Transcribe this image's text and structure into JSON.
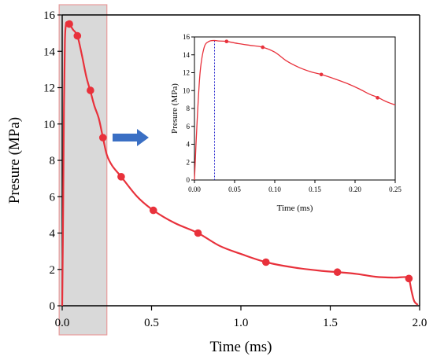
{
  "colors": {
    "curve": "#e8313b",
    "marker": "#e8313b",
    "highlight_fill": "#d9d9d9",
    "highlight_stroke": "#e89a9a",
    "arrow": "#3a6fc4",
    "vline": "#2222cc"
  },
  "chart_data": [
    {
      "type": "line",
      "xlabel": "Time (ms)",
      "ylabel": "Presure (MPa)",
      "xlim": [
        0,
        2.0
      ],
      "ylim": [
        0,
        16
      ],
      "xticks": [
        "0.0",
        "0.5",
        "1.0",
        "1.5",
        "2.0"
      ],
      "yticks": [
        "0",
        "2",
        "4",
        "6",
        "8",
        "10",
        "12",
        "14",
        "16"
      ],
      "highlight_region": {
        "x": [
          -0.017,
          0.25
        ]
      },
      "series": [
        {
          "curve": [
            [
              0.0,
              0.0
            ],
            [
              0.005,
              5.0
            ],
            [
              0.01,
              11.0
            ],
            [
              0.015,
              14.5
            ],
            [
              0.02,
              15.4
            ],
            [
              0.025,
              15.6
            ],
            [
              0.04,
              15.5
            ],
            [
              0.06,
              15.2
            ],
            [
              0.085,
              14.85
            ],
            [
              0.11,
              13.8
            ],
            [
              0.135,
              12.6
            ],
            [
              0.158,
              11.8
            ],
            [
              0.18,
              11.0
            ],
            [
              0.205,
              10.3
            ],
            [
              0.228,
              9.25
            ],
            [
              0.25,
              8.3
            ],
            [
              0.28,
              7.7
            ],
            [
              0.33,
              7.1
            ],
            [
              0.42,
              6.0
            ],
            [
              0.51,
              5.25
            ],
            [
              0.63,
              4.55
            ],
            [
              0.76,
              4.0
            ],
            [
              0.88,
              3.3
            ],
            [
              1.0,
              2.85
            ],
            [
              1.14,
              2.4
            ],
            [
              1.3,
              2.1
            ],
            [
              1.45,
              1.92
            ],
            [
              1.54,
              1.85
            ],
            [
              1.65,
              1.75
            ],
            [
              1.75,
              1.6
            ],
            [
              1.85,
              1.55
            ],
            [
              1.92,
              1.58
            ],
            [
              1.94,
              1.5
            ],
            [
              1.955,
              0.8
            ],
            [
              1.97,
              0.25
            ],
            [
              1.99,
              0.05
            ]
          ],
          "markers": [
            [
              0.04,
              15.5
            ],
            [
              0.085,
              14.85
            ],
            [
              0.158,
              11.85
            ],
            [
              0.228,
              9.25
            ],
            [
              0.33,
              7.1
            ],
            [
              0.51,
              5.25
            ],
            [
              0.76,
              4.0
            ],
            [
              1.14,
              2.4
            ],
            [
              1.54,
              1.85
            ],
            [
              1.94,
              1.5
            ]
          ]
        }
      ]
    },
    {
      "type": "line",
      "xlabel": "Time (ms)",
      "ylabel": "Presure (MPa)",
      "xlim": [
        0,
        0.25
      ],
      "ylim": [
        0,
        16
      ],
      "xticks": [
        "0.00",
        "0.05",
        "0.10",
        "0.15",
        "0.20",
        "0.25"
      ],
      "yticks": [
        "0",
        "2",
        "4",
        "6",
        "8",
        "10",
        "12",
        "14",
        "16"
      ],
      "vline_x": 0.025,
      "series": [
        {
          "curve": [
            [
              0.0,
              0.0
            ],
            [
              0.003,
              6.0
            ],
            [
              0.007,
              12.0
            ],
            [
              0.012,
              14.8
            ],
            [
              0.018,
              15.5
            ],
            [
              0.025,
              15.6
            ],
            [
              0.03,
              15.55
            ],
            [
              0.04,
              15.5
            ],
            [
              0.055,
              15.25
            ],
            [
              0.07,
              15.05
            ],
            [
              0.085,
              14.85
            ],
            [
              0.1,
              14.3
            ],
            [
              0.115,
              13.3
            ],
            [
              0.13,
              12.6
            ],
            [
              0.145,
              12.1
            ],
            [
              0.158,
              11.8
            ],
            [
              0.175,
              11.3
            ],
            [
              0.19,
              10.8
            ],
            [
              0.205,
              10.2
            ],
            [
              0.218,
              9.6
            ],
            [
              0.228,
              9.25
            ],
            [
              0.238,
              8.8
            ],
            [
              0.245,
              8.55
            ],
            [
              0.25,
              8.4
            ]
          ],
          "markers": [
            [
              0.04,
              15.5
            ],
            [
              0.085,
              14.85
            ],
            [
              0.158,
              11.8
            ],
            [
              0.228,
              9.2
            ]
          ]
        }
      ]
    }
  ]
}
